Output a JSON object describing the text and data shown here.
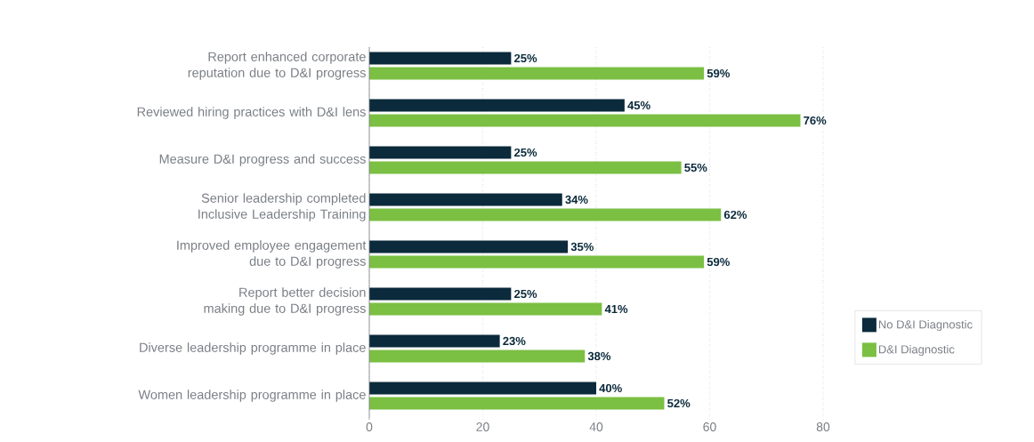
{
  "chart_data": {
    "type": "bar",
    "orientation": "horizontal",
    "categories": [
      "Report enhanced corporate reputation due to D&I progress",
      "Reviewed hiring practices with D&I lens",
      "Measure D&I progress and success",
      "Senior leadership completed Inclusive Leadership Training",
      "Improved employee engagement due to D&I progress",
      "Report better decision making due to D&I progress",
      "Diverse leadership programme in place",
      "Women leadership programme in place"
    ],
    "series": [
      {
        "name": "No D&I Diagnostic",
        "color": "#0b2a3b",
        "values": [
          25,
          45,
          25,
          34,
          35,
          25,
          23,
          40
        ],
        "value_labels": [
          "25%",
          "45%",
          "25%",
          "34%",
          "35%",
          "25%",
          "23%",
          "40%"
        ]
      },
      {
        "name": "D&I Diagnostic",
        "color": "#7bbf43",
        "values": [
          59,
          76,
          55,
          62,
          59,
          41,
          38,
          52
        ],
        "value_labels": [
          "59%",
          "76%",
          "55%",
          "62%",
          "59%",
          "41%",
          "38%",
          "52%"
        ]
      }
    ],
    "xlim": [
      0,
      80
    ],
    "xticks": [
      0,
      20,
      40,
      60,
      80
    ],
    "grid": "x",
    "legend": "right"
  }
}
